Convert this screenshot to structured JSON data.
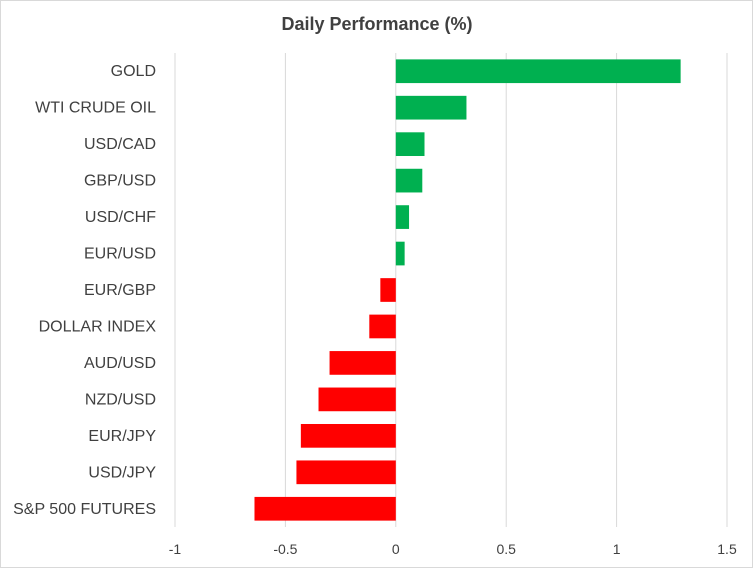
{
  "chart_data": {
    "type": "bar",
    "orientation": "horizontal",
    "title": "Daily Performance  (%)",
    "xlabel": "",
    "ylabel": "",
    "xlim": [
      -1,
      1.5
    ],
    "xticks": [
      "-1",
      "-0.5",
      "0",
      "0.5",
      "1",
      "1.5"
    ],
    "xtick_values": [
      -1,
      -0.5,
      0,
      0.5,
      1,
      1.5
    ],
    "grid": true,
    "legend": "none",
    "colors": {
      "positive": "#00b050",
      "negative": "#ff0000"
    },
    "categories": [
      "GOLD",
      "WTI CRUDE OIL",
      "USD/CAD",
      "GBP/USD",
      "USD/CHF",
      "EUR/USD",
      "EUR/GBP",
      "DOLLAR INDEX",
      "AUD/USD",
      "NZD/USD",
      "EUR/JPY",
      "USD/JPY",
      "S&P 500 FUTURES"
    ],
    "values": [
      1.29,
      0.32,
      0.13,
      0.12,
      0.06,
      0.04,
      -0.07,
      -0.12,
      -0.3,
      -0.35,
      -0.43,
      -0.45,
      -0.64
    ]
  }
}
